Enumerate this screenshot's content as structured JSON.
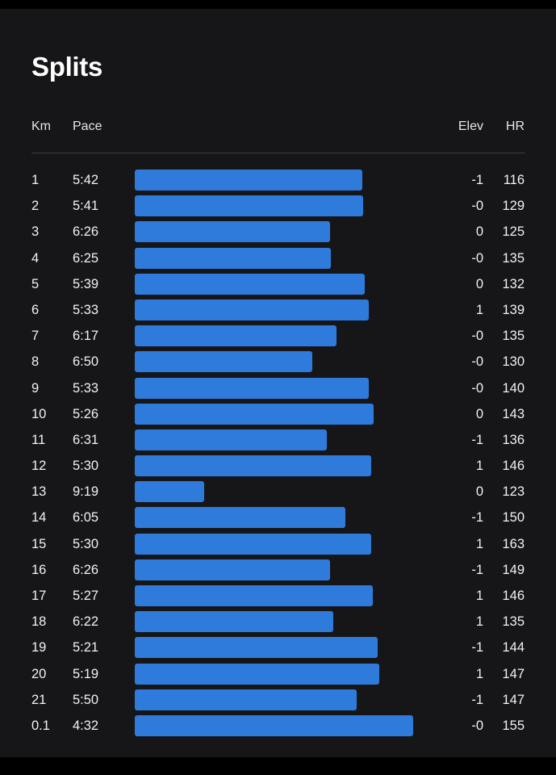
{
  "title": "Splits",
  "columns": {
    "km": "Km",
    "pace": "Pace",
    "elev": "Elev",
    "hr": "HR"
  },
  "colors": {
    "bar": "#2f7bdc",
    "background": "#161618"
  },
  "splits": [
    {
      "km": "1",
      "pace": "5:42",
      "elev": "-1",
      "hr": "116"
    },
    {
      "km": "2",
      "pace": "5:41",
      "elev": "-0",
      "hr": "129"
    },
    {
      "km": "3",
      "pace": "6:26",
      "elev": "0",
      "hr": "125"
    },
    {
      "km": "4",
      "pace": "6:25",
      "elev": "-0",
      "hr": "135"
    },
    {
      "km": "5",
      "pace": "5:39",
      "elev": "0",
      "hr": "132"
    },
    {
      "km": "6",
      "pace": "5:33",
      "elev": "1",
      "hr": "139"
    },
    {
      "km": "7",
      "pace": "6:17",
      "elev": "-0",
      "hr": "135"
    },
    {
      "km": "8",
      "pace": "6:50",
      "elev": "-0",
      "hr": "130"
    },
    {
      "km": "9",
      "pace": "5:33",
      "elev": "-0",
      "hr": "140"
    },
    {
      "km": "10",
      "pace": "5:26",
      "elev": "0",
      "hr": "143"
    },
    {
      "km": "11",
      "pace": "6:31",
      "elev": "-1",
      "hr": "136"
    },
    {
      "km": "12",
      "pace": "5:30",
      "elev": "1",
      "hr": "146"
    },
    {
      "km": "13",
      "pace": "9:19",
      "elev": "0",
      "hr": "123"
    },
    {
      "km": "14",
      "pace": "6:05",
      "elev": "-1",
      "hr": "150"
    },
    {
      "km": "15",
      "pace": "5:30",
      "elev": "1",
      "hr": "163"
    },
    {
      "km": "16",
      "pace": "6:26",
      "elev": "-1",
      "hr": "149"
    },
    {
      "km": "17",
      "pace": "5:27",
      "elev": "1",
      "hr": "146"
    },
    {
      "km": "18",
      "pace": "6:22",
      "elev": "1",
      "hr": "135"
    },
    {
      "km": "19",
      "pace": "5:21",
      "elev": "-1",
      "hr": "144"
    },
    {
      "km": "20",
      "pace": "5:19",
      "elev": "1",
      "hr": "147"
    },
    {
      "km": "21",
      "pace": "5:50",
      "elev": "-1",
      "hr": "147"
    },
    {
      "km": "0.1",
      "pace": "4:32",
      "elev": "-0",
      "hr": "155"
    }
  ]
}
